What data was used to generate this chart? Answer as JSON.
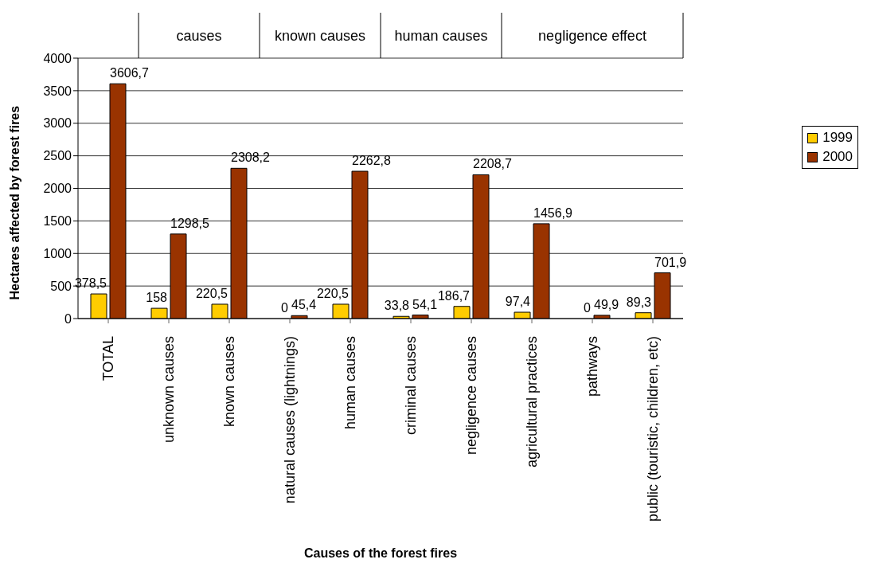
{
  "chart_data": {
    "type": "bar",
    "xlabel": "Causes of the forest fires",
    "ylabel": "Hectares affected by forest fires",
    "categories": [
      "TOTAL",
      "unknown causes",
      "known causes",
      "natural causes (lightnings)",
      "human causes",
      "criminal causes",
      "negligence causes",
      "agricultural practices",
      "pathways",
      "public (touristic, children, etc)"
    ],
    "series": [
      {
        "name": "1999",
        "color": "#ffcc00",
        "values": [
          378.5,
          158,
          220.5,
          0,
          220.5,
          33.8,
          186.7,
          97.4,
          0,
          89.3
        ],
        "value_labels": [
          "378,5",
          "158",
          "220,5",
          "0",
          "220,5",
          "33,8",
          "186,7",
          "97,4",
          "0",
          "89,3"
        ]
      },
      {
        "name": "2000",
        "color": "#993300",
        "values": [
          3606.7,
          1298.5,
          2308.2,
          45.4,
          2262.8,
          54.1,
          2208.7,
          1456.9,
          49.9,
          701.9
        ],
        "value_labels": [
          "3606,7",
          "1298,5",
          "2308,2",
          "45,4",
          "2262,8",
          "54,1",
          "2208,7",
          "1456,9",
          "49,9",
          "701,9"
        ]
      }
    ],
    "annotations": [
      "causes",
      "known causes",
      "human causes",
      "negligence effect"
    ],
    "ylim": [
      0,
      4000
    ],
    "yticks": [
      0,
      500,
      1000,
      1500,
      2000,
      2500,
      3000,
      3500,
      4000
    ],
    "grid": "y",
    "legend": "right"
  }
}
